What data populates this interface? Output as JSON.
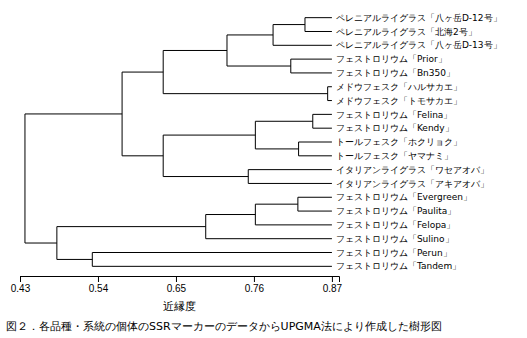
{
  "chart_data": {
    "type": "dendrogram",
    "title": "図２．各品種・系統の個体のSSRマーカーのデータからUPGMA法により作成した樹形図",
    "x_label": "近縁度",
    "xlim": [
      0.43,
      0.88
    ],
    "xticks": [
      0.43,
      0.54,
      0.65,
      0.76,
      0.87
    ],
    "color": "#000000",
    "leaf_x": 0.87,
    "tree": {
      "value": 0.437,
      "children": [
        {
          "value": 0.574,
          "children": [
            {
              "value": 0.632,
              "children": [
                {
                  "value": 0.722,
                  "children": [
                    {
                      "value": 0.787,
                      "children": [
                        {
                          "value": 0.832,
                          "children": [
                            {
                              "label": "ペレニアルライグラス「八ヶ岳D-12号」"
                            },
                            {
                              "label": "ペレニアルライグラス「北海2号」"
                            }
                          ]
                        },
                        {
                          "label": "ペレニアルライグラス「八ヶ岳D-13号」"
                        }
                      ]
                    },
                    {
                      "value": 0.812,
                      "children": [
                        {
                          "label": "フェストロリウム「Prior」"
                        },
                        {
                          "label": "フェストロリウム「Bn350」"
                        }
                      ]
                    }
                  ]
                },
                {
                  "value": 0.864,
                  "children": [
                    {
                      "label": "メドウフェスク「ハルサカエ」"
                    },
                    {
                      "label": "メドウフェスク「トモサカエ」"
                    }
                  ]
                }
              ]
            },
            {
              "value": 0.632,
              "children": [
                {
                  "value": 0.762,
                  "children": [
                    {
                      "value": 0.843,
                      "children": [
                        {
                          "label": "フェストロリウム「Felina」"
                        },
                        {
                          "label": "フェストロリウム「Kendy」"
                        }
                      ]
                    },
                    {
                      "value": 0.823,
                      "children": [
                        {
                          "label": "トールフェスク「ホクリョク」"
                        },
                        {
                          "label": "トールフェスク「ヤマナミ」"
                        }
                      ]
                    }
                  ]
                },
                {
                  "value": 0.752,
                  "children": [
                    {
                      "label": "イタリアンライグラス「ワセアオバ」"
                    },
                    {
                      "label": "イタリアンライグラス「アキアオバ」"
                    }
                  ]
                }
              ]
            }
          ]
        },
        {
          "value": 0.482,
          "children": [
            {
              "value": 0.692,
              "children": [
                {
                  "value": 0.762,
                  "children": [
                    {
                      "value": 0.822,
                      "children": [
                        {
                          "label": "フェストロリウム「Evergreen」"
                        },
                        {
                          "label": "フェストロリウム「Paulita」"
                        }
                      ]
                    },
                    {
                      "label": "フェストロリウム「Felopa」"
                    }
                  ]
                },
                {
                  "label": "フェストロリウム「Sulino」"
                }
              ]
            },
            {
              "value": 0.532,
              "children": [
                {
                  "label": "フェストロリウム「Perun」"
                },
                {
                  "label": "フェストロリウム「Tandem」"
                }
              ]
            }
          ]
        }
      ]
    }
  }
}
